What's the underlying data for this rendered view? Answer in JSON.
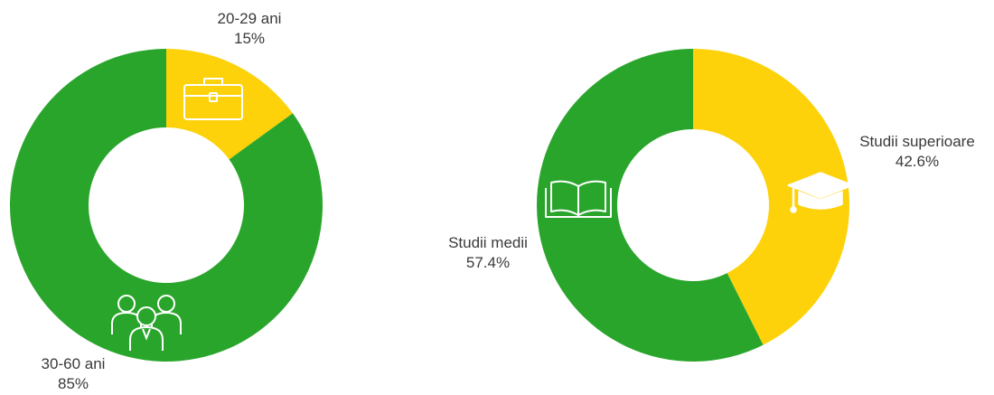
{
  "colors": {
    "green": "#2aa52c",
    "yellow": "#fdd20a",
    "background": "#ffffff"
  },
  "chart_data": [
    {
      "type": "pie",
      "variant": "donut",
      "categories": [
        "20-29 ani",
        "30-60 ani"
      ],
      "values": [
        15,
        85
      ],
      "value_labels": [
        "15%",
        "85%"
      ],
      "colors": [
        "#fdd20a",
        "#2aa52c"
      ],
      "icons": [
        "briefcase-icon",
        "people-group-icon"
      ]
    },
    {
      "type": "pie",
      "variant": "donut",
      "categories": [
        "Studii superioare",
        "Studii medii"
      ],
      "values": [
        42.6,
        57.4
      ],
      "value_labels": [
        "42.6%",
        "57.4%"
      ],
      "colors": [
        "#fdd20a",
        "#2aa52c"
      ],
      "icons": [
        "graduation-cap-icon",
        "open-book-icon"
      ]
    }
  ]
}
